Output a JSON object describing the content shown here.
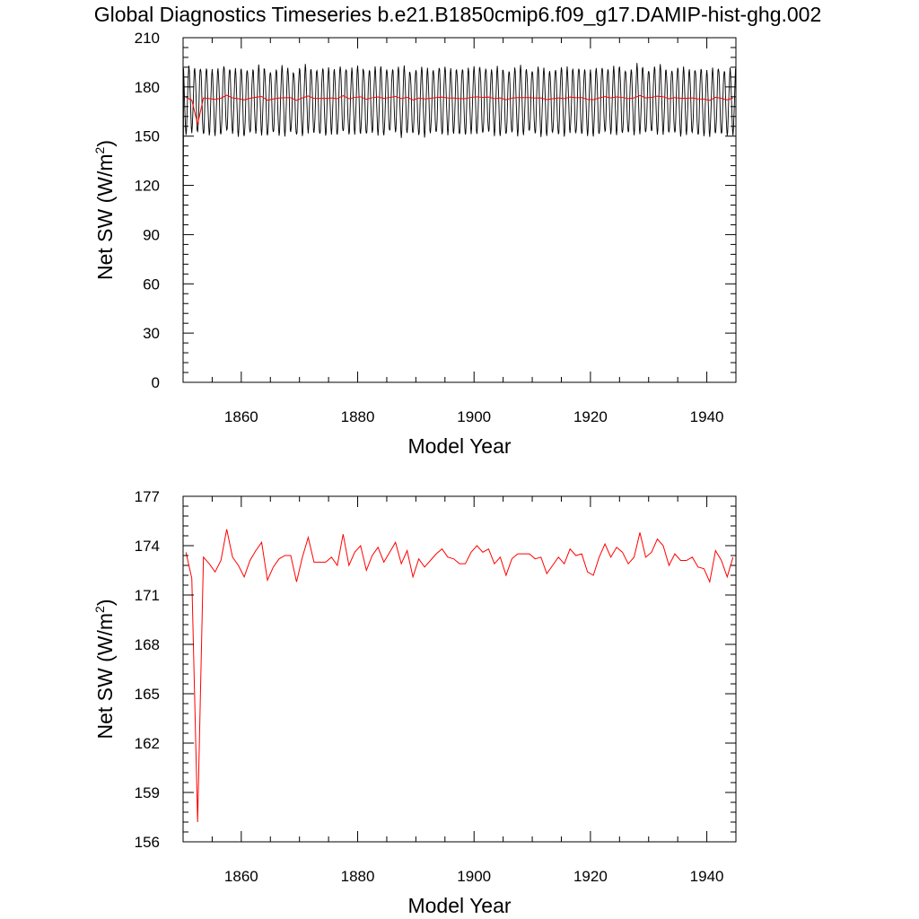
{
  "title": "Global Diagnostics Timeseries b.e21.B1850cmip6.f09_g17.DAMIP-hist-ghg.002",
  "colors": {
    "monthly": "#000000",
    "annual": "#ff0000",
    "axes": "#000000"
  },
  "chart_data": [
    {
      "type": "line",
      "xlabel": "Model Year",
      "ylabel_main": "Net SW (W/m",
      "ylabel_sup": "2",
      "ylabel_close": ")",
      "xlim": [
        1850,
        1945
      ],
      "ylim": [
        0,
        210
      ],
      "x_ticks": [
        1860,
        1880,
        1900,
        1920,
        1940
      ],
      "y_ticks": [
        0,
        30,
        60,
        90,
        120,
        150,
        180,
        210
      ],
      "grid": false,
      "series": [
        {
          "description": "monthly",
          "color": "#000000",
          "seasonal_amplitude": 20,
          "mean": 172,
          "start_value": 0,
          "period_years": 1
        },
        {
          "description": "annual",
          "color": "#ff0000",
          "series_ref": "annual"
        }
      ]
    },
    {
      "type": "line",
      "xlabel": "Model Year",
      "ylabel_main": "Net SW (W/m",
      "ylabel_sup": "2",
      "ylabel_close": ")",
      "xlim": [
        1850,
        1945
      ],
      "ylim": [
        156,
        177
      ],
      "x_ticks": [
        1860,
        1880,
        1900,
        1920,
        1940
      ],
      "y_ticks": [
        156,
        159,
        162,
        165,
        168,
        171,
        174,
        177
      ],
      "grid": false,
      "series": [
        {
          "description": "annual",
          "color": "#ff0000",
          "series_ref": "annual"
        }
      ]
    }
  ],
  "annual": {
    "x_start": 1850.5,
    "x_step": 1,
    "values": [
      173.6,
      172.0,
      157.2,
      173.3,
      172.9,
      172.4,
      173.1,
      175.0,
      173.3,
      172.8,
      172.1,
      173.1,
      173.7,
      174.2,
      171.9,
      172.7,
      173.2,
      173.4,
      173.4,
      171.8,
      173.3,
      174.5,
      173.0,
      173.0,
      173.0,
      173.3,
      172.8,
      174.7,
      172.8,
      173.6,
      174.0,
      172.5,
      173.4,
      173.9,
      173.0,
      173.6,
      174.2,
      172.9,
      173.7,
      172.1,
      173.2,
      172.7,
      173.1,
      173.5,
      173.8,
      173.3,
      173.2,
      172.9,
      172.9,
      173.6,
      174.0,
      173.6,
      173.8,
      172.9,
      173.3,
      172.2,
      173.2,
      173.5,
      173.5,
      173.5,
      173.2,
      173.3,
      172.3,
      172.8,
      173.3,
      172.9,
      173.8,
      173.4,
      173.5,
      172.4,
      172.2,
      173.3,
      174.1,
      173.3,
      173.9,
      173.6,
      172.9,
      173.3,
      174.8,
      173.3,
      173.6,
      174.4,
      174.0,
      172.8,
      173.5,
      173.1,
      173.1,
      173.3,
      172.7,
      172.6,
      171.8,
      173.7,
      173.1,
      172.1,
      173.3
    ]
  }
}
